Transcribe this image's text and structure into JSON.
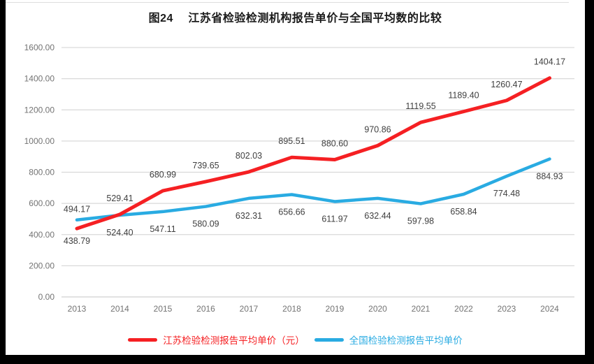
{
  "title": "图24　 江苏省检验检测机构报告单价与全国平均数的比较",
  "chart_data": {
    "type": "line",
    "x": [
      "2013",
      "2014",
      "2015",
      "2016",
      "2017",
      "2018",
      "2019",
      "2020",
      "2021",
      "2022",
      "2023",
      "2024"
    ],
    "series": [
      {
        "id": "jiangsu",
        "name": "江苏检验检测报告平均单价（元）",
        "color": "#f52023",
        "width": 5,
        "values": [
          438.79,
          529.41,
          680.99,
          739.65,
          802.03,
          895.51,
          880.6,
          970.86,
          1119.55,
          1189.4,
          1260.47,
          1404.17
        ],
        "label_offset": -19,
        "label_overrides": {
          "0": 22
        }
      },
      {
        "id": "national",
        "name": "全国检验检测报告平均单价",
        "color": "#29abe2",
        "width": 4.5,
        "values": [
          494.17,
          524.4,
          547.11,
          580.09,
          632.31,
          656.66,
          611.97,
          632.44,
          597.98,
          658.84,
          774.48,
          884.93
        ],
        "label_offset": 29,
        "label_overrides": {
          "0": -11
        }
      }
    ],
    "title": "图24　 江苏省检验检测机构报告单价与全国平均数的比较",
    "xlabel": "",
    "ylabel": "",
    "ylim": [
      0,
      1600
    ],
    "ytick_step": 200,
    "yticks": [
      "0.00",
      "200.00",
      "400.00",
      "600.00",
      "800.00",
      "1000.00",
      "1200.00",
      "1400.00",
      "1600.00"
    ],
    "grid": true,
    "legend_position": "bottom",
    "grid_color": "#d9d9d9",
    "axis_label_color": "#737373",
    "data_label_color": "#404040"
  }
}
